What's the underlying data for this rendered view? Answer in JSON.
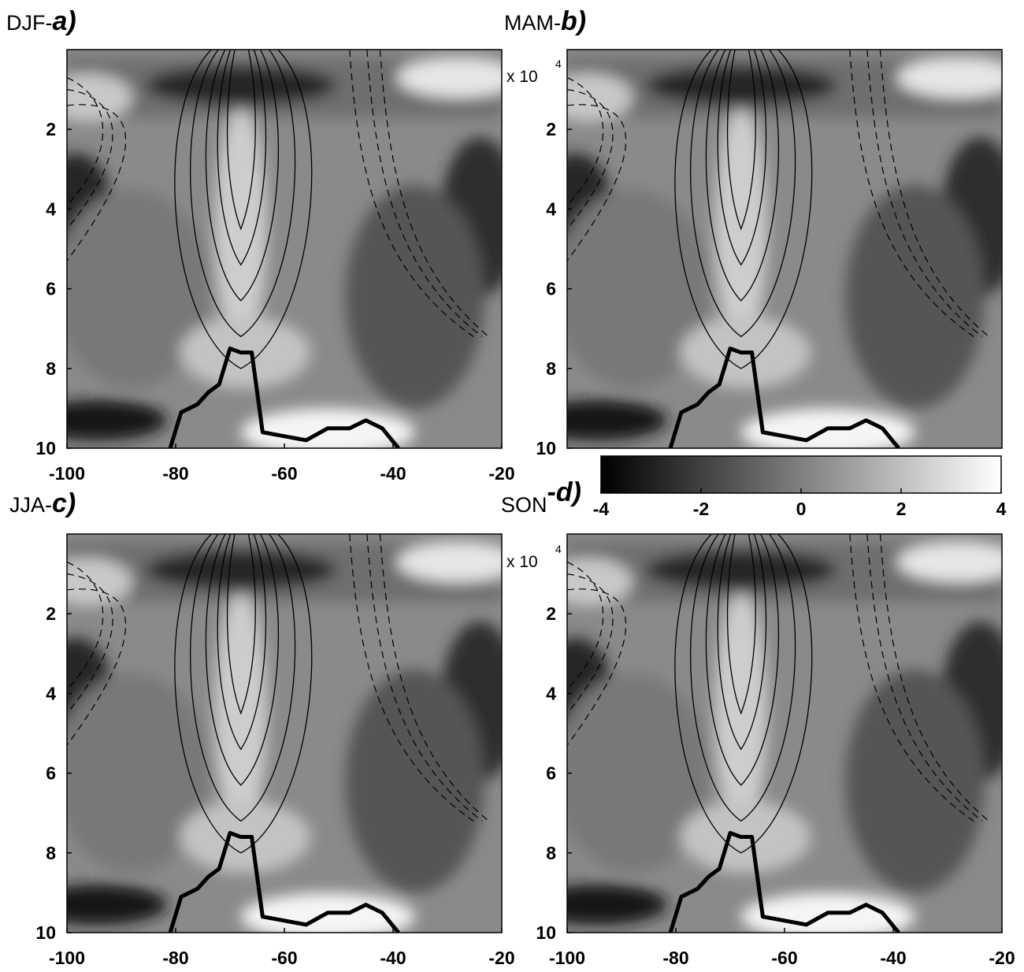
{
  "chart_data": [
    {
      "type": "heatmap",
      "panel": "a",
      "season": "DJF",
      "label_prefix": "DJF-",
      "label_letter": "a)",
      "x_ticks": [
        -100,
        -80,
        -60,
        -40,
        -20
      ],
      "y_ticks": [
        2,
        4,
        6,
        8,
        10
      ],
      "xlim": [
        -100,
        -20
      ],
      "ylim": [
        0,
        10
      ],
      "y_reversed": true,
      "multiplier": "x 10",
      "multiplier_exp": "4",
      "topography_profile": [
        [
          -81,
          10.0
        ],
        [
          -79,
          9.1
        ],
        [
          -76,
          8.9
        ],
        [
          -74,
          8.6
        ],
        [
          -72,
          8.4
        ],
        [
          -70,
          7.5
        ],
        [
          -68,
          7.6
        ],
        [
          -66,
          7.6
        ],
        [
          -64,
          9.6
        ],
        [
          -60,
          9.7
        ],
        [
          -56,
          9.8
        ],
        [
          -52,
          9.5
        ],
        [
          -48,
          9.5
        ],
        [
          -45,
          9.3
        ],
        [
          -42,
          9.5
        ],
        [
          -39,
          10.0
        ]
      ],
      "grid": false
    },
    {
      "type": "heatmap",
      "panel": "b",
      "season": "MAM",
      "label_prefix": "MAM-",
      "label_letter": "b)",
      "x_ticks": [],
      "y_ticks": [
        2,
        4,
        6,
        8,
        10
      ],
      "xlim": [
        -100,
        -20
      ],
      "ylim": [
        0,
        10
      ],
      "y_reversed": true,
      "multiplier": "x 10",
      "multiplier_exp": "4",
      "topography_profile": [
        [
          -81,
          10.0
        ],
        [
          -79,
          9.1
        ],
        [
          -76,
          8.9
        ],
        [
          -74,
          8.6
        ],
        [
          -72,
          8.4
        ],
        [
          -70,
          7.5
        ],
        [
          -68,
          7.6
        ],
        [
          -66,
          7.6
        ],
        [
          -64,
          9.6
        ],
        [
          -60,
          9.7
        ],
        [
          -56,
          9.8
        ],
        [
          -52,
          9.5
        ],
        [
          -48,
          9.5
        ],
        [
          -45,
          9.3
        ],
        [
          -42,
          9.5
        ],
        [
          -39,
          10.0
        ]
      ],
      "grid": false
    },
    {
      "type": "heatmap",
      "panel": "c",
      "season": "JJA",
      "label_prefix": "JJA-",
      "label_letter": "c)",
      "x_ticks": [
        -100,
        -80,
        -60,
        -40,
        -20
      ],
      "y_ticks": [
        2,
        4,
        6,
        8,
        10
      ],
      "xlim": [
        -100,
        -20
      ],
      "ylim": [
        0,
        10
      ],
      "y_reversed": true,
      "multiplier": "x 10",
      "multiplier_exp": "4",
      "topography_profile": [
        [
          -81,
          10.0
        ],
        [
          -79,
          9.1
        ],
        [
          -76,
          8.9
        ],
        [
          -74,
          8.6
        ],
        [
          -72,
          8.4
        ],
        [
          -70,
          7.5
        ],
        [
          -68,
          7.6
        ],
        [
          -66,
          7.6
        ],
        [
          -64,
          9.6
        ],
        [
          -60,
          9.7
        ],
        [
          -56,
          9.8
        ],
        [
          -52,
          9.5
        ],
        [
          -48,
          9.5
        ],
        [
          -45,
          9.3
        ],
        [
          -42,
          9.5
        ],
        [
          -39,
          10.0
        ]
      ],
      "grid": false
    },
    {
      "type": "heatmap",
      "panel": "d",
      "season": "SON",
      "label_prefix": "SON",
      "label_letter": "-d)",
      "x_ticks": [
        -100,
        -80,
        -60,
        -40,
        -20
      ],
      "y_ticks": [
        2,
        4,
        6,
        8,
        10
      ],
      "xlim": [
        -100,
        -20
      ],
      "ylim": [
        0,
        10
      ],
      "y_reversed": true,
      "multiplier": "x 10",
      "multiplier_exp": "4",
      "topography_profile": [
        [
          -81,
          10.0
        ],
        [
          -79,
          9.1
        ],
        [
          -76,
          8.9
        ],
        [
          -74,
          8.6
        ],
        [
          -72,
          8.4
        ],
        [
          -70,
          7.5
        ],
        [
          -68,
          7.6
        ],
        [
          -66,
          7.6
        ],
        [
          -64,
          9.6
        ],
        [
          -60,
          9.7
        ],
        [
          -56,
          9.8
        ],
        [
          -52,
          9.5
        ],
        [
          -48,
          9.5
        ],
        [
          -45,
          9.3
        ],
        [
          -42,
          9.5
        ],
        [
          -39,
          10.0
        ]
      ],
      "grid": false
    }
  ],
  "colorbar": {
    "ticks": [
      -4,
      -2,
      0,
      2,
      4
    ],
    "range": [
      -4,
      4
    ],
    "colormap": "gray",
    "low_color": "#000000",
    "high_color": "#ffffff"
  }
}
